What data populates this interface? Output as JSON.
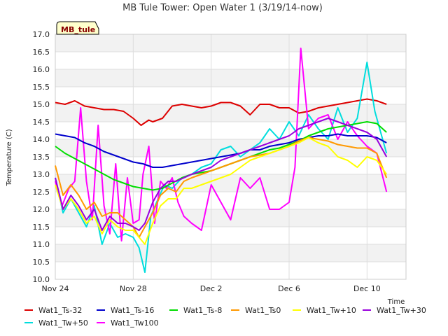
{
  "chart_data": {
    "type": "line",
    "title": "MB Tule Tower: Open Water 1 (3/19/14-now)",
    "xlabel": "Time",
    "ylabel": "Temperature (C)",
    "badge": "MB_tule",
    "ylim": [
      10.0,
      17.0
    ],
    "yticks": [
      "10.0",
      "10.5",
      "11.0",
      "11.5",
      "12.0",
      "12.5",
      "13.0",
      "13.5",
      "14.0",
      "14.5",
      "15.0",
      "15.5",
      "16.0",
      "16.5",
      "17.0"
    ],
    "xlim": [
      0,
      18
    ],
    "xticks": [
      {
        "value": 0,
        "label": "Nov 24"
      },
      {
        "value": 4,
        "label": "Nov 28"
      },
      {
        "value": 8,
        "label": "Dec 2"
      },
      {
        "value": 12,
        "label": "Dec 6"
      },
      {
        "value": 16,
        "label": "Dec 10"
      }
    ],
    "legend_position": "bottom",
    "series": [
      {
        "name": "Wat1_Ts-32",
        "color": "#dd0000",
        "x": [
          0.0,
          0.5,
          1.0,
          1.5,
          2.0,
          2.5,
          3.0,
          3.5,
          4.0,
          4.4,
          4.8,
          5.0,
          5.5,
          6.0,
          6.5,
          7.0,
          7.5,
          8.0,
          8.5,
          9.0,
          9.5,
          10.0,
          10.5,
          11.0,
          11.5,
          12.0,
          12.5,
          13.0,
          13.5,
          14.0,
          14.5,
          15.0,
          15.5,
          16.0,
          16.5,
          17.0
        ],
        "values": [
          15.05,
          15.0,
          15.1,
          14.95,
          14.9,
          14.85,
          14.85,
          14.8,
          14.6,
          14.4,
          14.55,
          14.5,
          14.6,
          14.95,
          15.0,
          14.95,
          14.9,
          14.95,
          15.05,
          15.05,
          14.95,
          14.7,
          15.0,
          15.0,
          14.9,
          14.9,
          14.75,
          14.8,
          14.9,
          14.95,
          15.0,
          15.05,
          15.1,
          15.15,
          15.1,
          15.0
        ]
      },
      {
        "name": "Wat1_Tw+50",
        "color": "#00dddd",
        "x": [
          0.0,
          0.4,
          0.8,
          1.2,
          1.6,
          2.0,
          2.4,
          2.8,
          3.2,
          3.6,
          4.0,
          4.3,
          4.6,
          4.9,
          5.2,
          5.6,
          6.0,
          6.5,
          7.0,
          7.5,
          8.0,
          8.5,
          9.0,
          9.5,
          10.0,
          10.5,
          11.0,
          11.5,
          12.0,
          12.5,
          13.0,
          13.5,
          14.0,
          14.5,
          15.0,
          15.5,
          16.0,
          16.4,
          16.8,
          17.0
        ],
        "values": [
          12.9,
          11.9,
          12.3,
          11.9,
          11.5,
          12.1,
          11.0,
          11.6,
          11.2,
          11.3,
          11.2,
          10.9,
          10.2,
          11.8,
          12.2,
          12.7,
          12.6,
          12.9,
          13.0,
          13.2,
          13.3,
          13.7,
          13.8,
          13.5,
          13.7,
          13.9,
          14.3,
          14.0,
          14.5,
          14.1,
          14.7,
          14.3,
          14.0,
          14.9,
          14.2,
          14.6,
          16.2,
          14.8,
          14.0,
          13.6
        ]
      },
      {
        "name": "Wat1_Tw100",
        "color": "#ff00ff",
        "x": [
          0.0,
          0.35,
          0.7,
          1.0,
          1.3,
          1.6,
          1.9,
          2.2,
          2.5,
          2.8,
          3.1,
          3.4,
          3.7,
          4.0,
          4.3,
          4.5,
          4.8,
          5.1,
          5.4,
          5.7,
          6.0,
          6.3,
          6.6,
          7.0,
          7.5,
          8.0,
          8.5,
          9.0,
          9.5,
          10.0,
          10.5,
          11.0,
          11.5,
          12.0,
          12.3,
          12.6,
          13.0,
          13.5,
          14.0,
          14.5,
          15.0,
          15.5,
          16.0,
          16.5,
          17.0
        ],
        "values": [
          12.8,
          12.1,
          12.6,
          12.8,
          14.9,
          12.8,
          11.7,
          14.4,
          12.1,
          11.3,
          13.3,
          11.1,
          12.9,
          11.6,
          11.7,
          13.0,
          13.8,
          11.6,
          12.8,
          12.6,
          12.9,
          12.2,
          11.8,
          11.6,
          11.4,
          12.7,
          12.2,
          11.7,
          12.9,
          12.6,
          12.9,
          12.0,
          12.0,
          12.2,
          13.2,
          16.6,
          14.3,
          14.6,
          14.7,
          14.0,
          14.5,
          14.1,
          13.8,
          13.6,
          12.5
        ]
      },
      {
        "name": "Wat1_Ts-16",
        "color": "#0000cc",
        "x": [
          0.0,
          0.5,
          1.0,
          1.5,
          2.0,
          2.5,
          3.0,
          3.5,
          4.0,
          4.5,
          5.0,
          5.5,
          6.0,
          6.5,
          7.0,
          7.5,
          8.0,
          8.5,
          9.0,
          9.5,
          10.0,
          10.5,
          11.0,
          11.5,
          12.0,
          12.5,
          13.0,
          13.5,
          14.0,
          14.5,
          15.0,
          15.5,
          16.0,
          16.5,
          17.0
        ],
        "values": [
          14.15,
          14.1,
          14.05,
          13.9,
          13.8,
          13.65,
          13.55,
          13.45,
          13.35,
          13.3,
          13.2,
          13.2,
          13.25,
          13.3,
          13.35,
          13.4,
          13.45,
          13.5,
          13.55,
          13.6,
          13.7,
          13.7,
          13.8,
          13.85,
          13.9,
          14.0,
          14.05,
          14.1,
          14.1,
          14.15,
          14.1,
          14.1,
          14.1,
          14.05,
          13.9
        ]
      },
      {
        "name": "Wat1_Ts-8",
        "color": "#00dd00",
        "x": [
          0.0,
          0.5,
          1.0,
          1.5,
          2.0,
          2.5,
          3.0,
          3.5,
          4.0,
          4.5,
          5.0,
          5.5,
          6.0,
          6.5,
          7.0,
          7.5,
          8.0,
          8.5,
          9.0,
          9.5,
          10.0,
          10.5,
          11.0,
          11.5,
          12.0,
          12.5,
          13.0,
          13.5,
          14.0,
          14.5,
          15.0,
          15.5,
          16.0,
          16.5,
          17.0
        ],
        "values": [
          13.8,
          13.6,
          13.45,
          13.3,
          13.15,
          13.0,
          12.85,
          12.75,
          12.65,
          12.6,
          12.55,
          12.6,
          12.75,
          12.9,
          13.0,
          13.05,
          13.1,
          13.2,
          13.3,
          13.4,
          13.5,
          13.6,
          13.7,
          13.75,
          13.85,
          13.95,
          14.1,
          14.2,
          14.3,
          14.35,
          14.4,
          14.45,
          14.5,
          14.45,
          14.2
        ]
      },
      {
        "name": "Wat1_Ts0",
        "color": "#ff9900",
        "x": [
          0.0,
          0.4,
          0.8,
          1.2,
          1.6,
          2.0,
          2.4,
          2.8,
          3.2,
          3.6,
          4.0,
          4.3,
          4.6,
          5.0,
          5.4,
          5.8,
          6.2,
          6.6,
          7.0,
          7.5,
          8.0,
          8.5,
          9.0,
          9.5,
          10.0,
          10.5,
          11.0,
          11.5,
          12.0,
          12.5,
          13.0,
          13.5,
          14.0,
          14.5,
          15.0,
          15.5,
          16.0,
          16.5,
          17.0
        ],
        "values": [
          13.25,
          12.4,
          12.7,
          12.4,
          12.0,
          12.2,
          11.8,
          11.9,
          11.9,
          11.7,
          11.5,
          11.2,
          11.5,
          11.9,
          12.4,
          12.6,
          12.5,
          12.8,
          12.9,
          13.0,
          13.1,
          13.2,
          13.3,
          13.4,
          13.5,
          13.55,
          13.6,
          13.7,
          13.8,
          13.95,
          14.05,
          14.0,
          13.95,
          13.85,
          13.8,
          13.75,
          13.75,
          13.6,
          12.9
        ]
      },
      {
        "name": "Wat1_Tw+10",
        "color": "#ffff00",
        "x": [
          0.0,
          0.4,
          0.8,
          1.2,
          1.6,
          2.0,
          2.4,
          2.8,
          3.2,
          3.6,
          4.0,
          4.3,
          4.6,
          5.0,
          5.4,
          5.8,
          6.2,
          6.6,
          7.0,
          7.5,
          8.0,
          8.5,
          9.0,
          9.5,
          10.0,
          10.5,
          11.0,
          11.5,
          12.0,
          12.5,
          13.0,
          13.5,
          14.0,
          14.5,
          15.0,
          15.5,
          16.0,
          16.5,
          17.0
        ],
        "values": [
          12.7,
          12.0,
          12.3,
          12.0,
          11.6,
          11.8,
          11.3,
          11.7,
          11.5,
          11.4,
          11.4,
          11.2,
          11.0,
          11.6,
          12.1,
          12.3,
          12.3,
          12.6,
          12.6,
          12.7,
          12.8,
          12.9,
          13.0,
          13.2,
          13.4,
          13.5,
          13.6,
          13.7,
          13.8,
          13.9,
          14.05,
          13.9,
          13.8,
          13.5,
          13.4,
          13.2,
          13.5,
          13.4,
          13.0
        ]
      },
      {
        "name": "Wat1_Tw+30",
        "color": "#9900dd",
        "x": [
          0.0,
          0.4,
          0.8,
          1.2,
          1.6,
          2.0,
          2.4,
          2.8,
          3.2,
          3.6,
          4.0,
          4.3,
          4.6,
          5.0,
          5.4,
          5.8,
          6.2,
          6.6,
          7.0,
          7.5,
          8.0,
          8.5,
          9.0,
          9.5,
          10.0,
          10.5,
          11.0,
          11.5,
          12.0,
          12.5,
          13.0,
          13.5,
          14.0,
          14.5,
          15.0,
          15.5,
          16.0,
          16.5,
          17.0
        ],
        "values": [
          12.9,
          12.0,
          12.4,
          12.1,
          11.7,
          12.0,
          11.4,
          11.8,
          11.6,
          11.6,
          11.5,
          11.4,
          11.6,
          12.2,
          12.6,
          12.8,
          12.8,
          12.9,
          13.0,
          13.1,
          13.2,
          13.4,
          13.5,
          13.6,
          13.7,
          13.8,
          13.9,
          14.0,
          14.1,
          14.3,
          14.4,
          14.5,
          14.6,
          14.5,
          14.4,
          14.3,
          14.2,
          14.0,
          13.5
        ]
      }
    ]
  }
}
